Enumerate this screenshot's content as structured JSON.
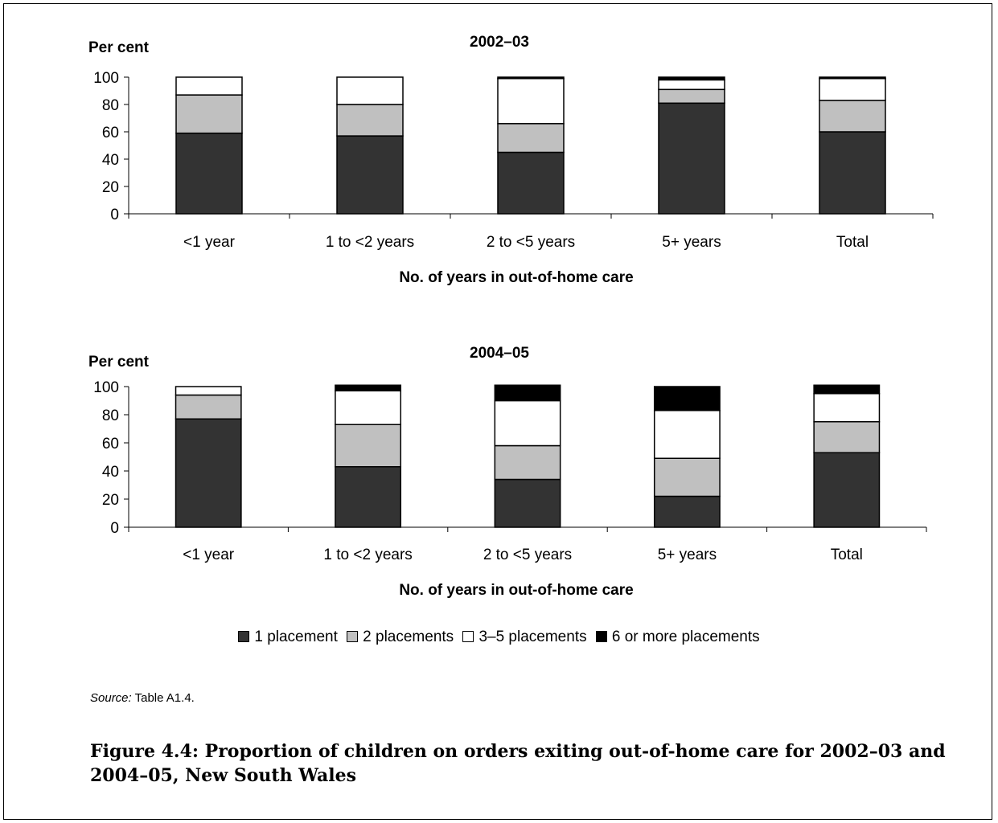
{
  "chart_data": [
    {
      "type": "bar",
      "stacked": true,
      "title": "2002–03",
      "ylabel": "Per cent",
      "xlabel": "No. of years in out-of-home care",
      "ylim": [
        0,
        100
      ],
      "yticks": [
        0,
        20,
        40,
        60,
        80,
        100
      ],
      "categories": [
        "<1 year",
        "1 to <2 years",
        "2 to <5 years",
        "5+ years",
        "Total"
      ],
      "series": [
        {
          "name": "1 placement",
          "color": "#333333",
          "values": [
            59,
            57,
            45,
            81,
            60
          ]
        },
        {
          "name": "2 placements",
          "color": "#c0c0c0",
          "values": [
            28,
            23,
            21,
            10,
            23
          ]
        },
        {
          "name": "3–5 placements",
          "color": "#ffffff",
          "values": [
            13,
            20,
            33,
            7,
            16
          ]
        },
        {
          "name": "6 or more placements",
          "color": "#000000",
          "values": [
            0,
            0,
            1,
            2,
            1
          ]
        }
      ]
    },
    {
      "type": "bar",
      "stacked": true,
      "title": "2004–05",
      "ylabel": "Per cent",
      "xlabel": "No. of years in out-of-home care",
      "ylim": [
        0,
        100
      ],
      "yticks": [
        0,
        20,
        40,
        60,
        80,
        100
      ],
      "categories": [
        "<1 year",
        "1 to <2 years",
        "2 to <5 years",
        "5+ years",
        "Total"
      ],
      "series": [
        {
          "name": "1 placement",
          "color": "#333333",
          "values": [
            77,
            43,
            34,
            22,
            53
          ]
        },
        {
          "name": "2 placements",
          "color": "#c0c0c0",
          "values": [
            17,
            30,
            24,
            27,
            22
          ]
        },
        {
          "name": "3–5 placements",
          "color": "#ffffff",
          "values": [
            6,
            24,
            32,
            34,
            20
          ]
        },
        {
          "name": "6 or more placements",
          "color": "#000000",
          "values": [
            0,
            4,
            11,
            17,
            6
          ]
        }
      ]
    }
  ],
  "legend": [
    {
      "label": "1 placement",
      "color": "#333333"
    },
    {
      "label": "2 placements",
      "color": "#c0c0c0"
    },
    {
      "label": "3–5 placements",
      "color": "#ffffff"
    },
    {
      "label": "6 or more placements",
      "color": "#000000"
    }
  ],
  "source": {
    "label": "Source:",
    "text": " Table A1.4."
  },
  "caption": "Figure 4.4: Proportion of children on orders exiting out-of-home care for 2002–03 and 2004–05, New South Wales"
}
